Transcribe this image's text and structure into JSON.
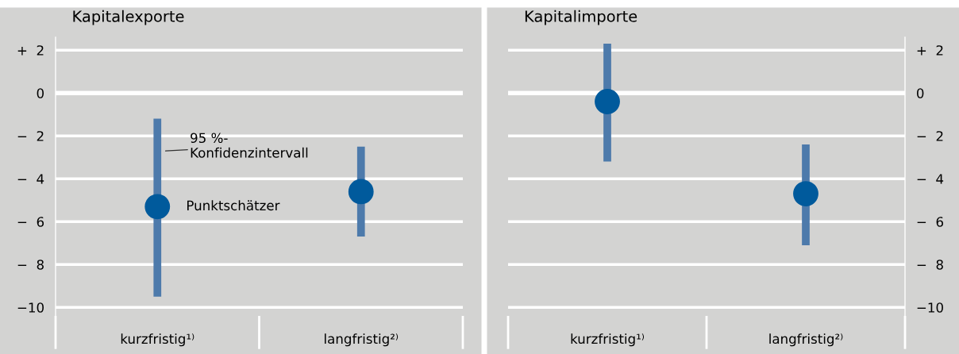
{
  "chart_data": [
    {
      "type": "scatter",
      "title": "Kapitalexporte",
      "categories": [
        "kurzfristig¹⁾",
        "langfristig²⁾"
      ],
      "marker": "circle",
      "grid": "y",
      "ylim": [
        -10.4,
        2.6
      ],
      "yticks": [
        {
          "value": 2,
          "label": "+  2"
        },
        0,
        {
          "value": -2,
          "label": "−  2"
        },
        {
          "value": -4,
          "label": "−  4"
        },
        {
          "value": -6,
          "label": "−  6"
        },
        {
          "value": -8,
          "label": "−  8"
        },
        {
          "value": -10,
          "label": "−10"
        }
      ],
      "series": [
        {
          "color": "#005a9c",
          "values": [
            -5.3,
            -4.6
          ],
          "errors": [
            [
              -9.5,
              -1.2
            ],
            [
              -6.7,
              -2.5
            ]
          ]
        }
      ],
      "annotations": [
        {
          "text": "95 %-\nKonfidenzintervall",
          "x": "kurzfristig¹⁾",
          "y": -2.7
        },
        {
          "text": "Punktschätzer",
          "x": "kurzfristig¹⁾",
          "y": -5.3
        }
      ]
    },
    {
      "type": "scatter",
      "title": "Kapitalimporte",
      "categories": [
        "kurzfristig¹⁾",
        "langfristig²⁾"
      ],
      "marker": "circle",
      "grid": "y",
      "y2lim": [
        -10.4,
        2.6
      ],
      "y2ticks": [
        {
          "value": 2,
          "label": "+  2"
        },
        0,
        {
          "value": -2,
          "label": "−  2"
        },
        {
          "value": -4,
          "label": "−  4"
        },
        {
          "value": -6,
          "label": "−  6"
        },
        {
          "value": -8,
          "label": "−  8"
        },
        {
          "value": -10,
          "label": "−10"
        }
      ],
      "series": [
        {
          "color": "#005a9c",
          "axis": "y2",
          "values": [
            -0.4,
            -4.7
          ],
          "errors": [
            [
              -3.2,
              2.3
            ],
            [
              -7.1,
              -2.4
            ]
          ]
        }
      ]
    }
  ]
}
